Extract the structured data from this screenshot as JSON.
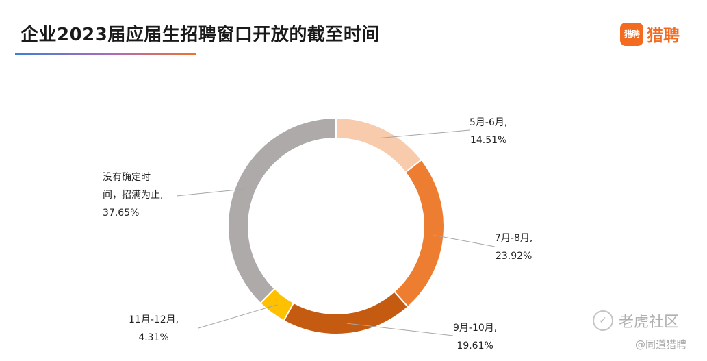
{
  "header": {
    "title": "企业2023届应届生招聘窗口开放的截至时间",
    "logo_icon_text": "猎聘",
    "logo_text": "猎聘",
    "accent_color": "#f26b21"
  },
  "watermark": {
    "icon": "tiger-icon",
    "main_text": "老虎社区",
    "sub_text": "@同道猎聘"
  },
  "chart_data": {
    "type": "pie",
    "variant": "donut",
    "title": "企业2023届应届生招聘窗口开放的截至时间",
    "slices": [
      {
        "name": "5月-6月,",
        "value": 14.51,
        "value_label": "14.51%",
        "color": "#f8cbad"
      },
      {
        "name": "7月-8月,",
        "value": 23.92,
        "value_label": "23.92%",
        "color": "#ed7d31"
      },
      {
        "name": "9月-10月,",
        "value": 19.61,
        "value_label": "19.61%",
        "color": "#c55a11"
      },
      {
        "name": "11月-12月,",
        "value": 4.31,
        "value_label": "4.31%",
        "color": "#ffc000"
      },
      {
        "name": "没有确定时间，招满为止,",
        "name_lines": [
          "没有确定时",
          "间，招满为止,"
        ],
        "value": 37.65,
        "value_label": "37.65%",
        "color": "#aeaaaa"
      }
    ],
    "start_angle_deg": 0,
    "direction": "clockwise",
    "legend": "none",
    "labels": "outside-with-leader-lines"
  }
}
